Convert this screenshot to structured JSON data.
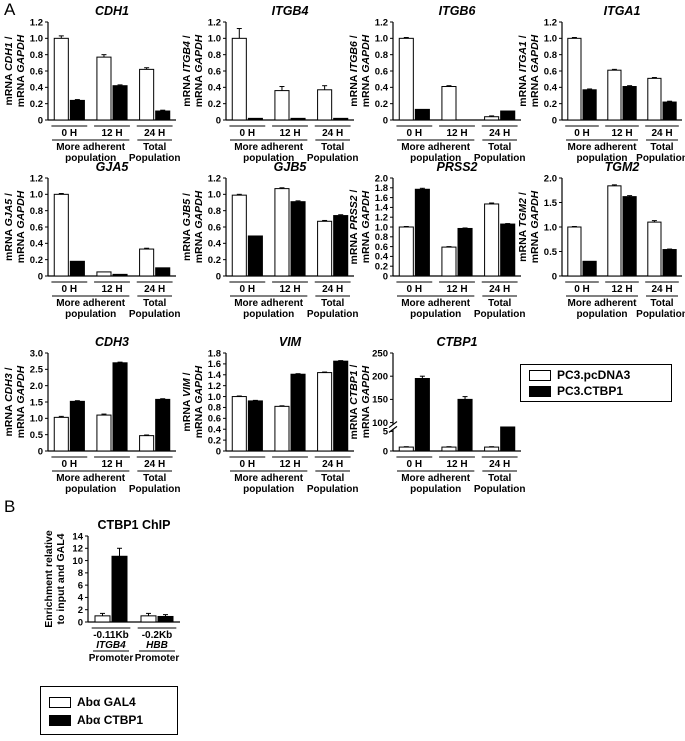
{
  "figure": {
    "panel_a_letter": "A",
    "panel_b_letter": "B",
    "legend_a": [
      {
        "label": "PC3.pcDNA3",
        "fill": "open"
      },
      {
        "label": "PC3.CTBP1",
        "fill": "filled"
      }
    ],
    "legend_b": [
      {
        "label": "Abα GAL4",
        "fill": "open"
      },
      {
        "label": "Abα CTBP1",
        "fill": "filled"
      }
    ]
  },
  "chart_data": [
    {
      "type": "bar",
      "gene": "CDH1",
      "title": "CDH1",
      "ylabel_top": "mRNA CDH1 /",
      "ylabel_bottom": "mRNA GAPDH",
      "categories": [
        "0 H",
        "12 H",
        "24 H"
      ],
      "group_labels": [
        {
          "text": [
            "More adherent",
            "population"
          ],
          "span": [
            0,
            1
          ]
        },
        {
          "text": [
            "Total",
            "Population"
          ],
          "span": [
            2,
            2
          ]
        }
      ],
      "series": [
        {
          "name": "PC3.pcDNA3",
          "values": [
            1.0,
            0.77,
            0.62
          ],
          "errors": [
            0.03,
            0.03,
            0.02
          ]
        },
        {
          "name": "PC3.CTBP1",
          "values": [
            0.24,
            0.42,
            0.11
          ],
          "errors": [
            0.01,
            0.01,
            0.01
          ]
        }
      ],
      "ylim": [
        0,
        1.2
      ],
      "yticks": [
        "0",
        "0.2",
        "0.4",
        "0.6",
        "0.8",
        "1.0",
        "1.2"
      ],
      "ytick_values": [
        0,
        0.2,
        0.4,
        0.6,
        0.8,
        1.0,
        1.2
      ]
    },
    {
      "type": "bar",
      "gene": "ITGB4",
      "title": "ITGB4",
      "ylabel_top": "mRNA ITGB4 /",
      "ylabel_bottom": "mRNA GAPDH",
      "categories": [
        "0 H",
        "12 H",
        "24 H"
      ],
      "group_labels": [
        {
          "text": [
            "More adherent",
            "population"
          ],
          "span": [
            0,
            1
          ]
        },
        {
          "text": [
            "Total",
            "Population"
          ],
          "span": [
            2,
            2
          ]
        }
      ],
      "series": [
        {
          "name": "PC3.pcDNA3",
          "values": [
            1.0,
            0.36,
            0.37
          ],
          "errors": [
            0.12,
            0.05,
            0.05
          ]
        },
        {
          "name": "PC3.CTBP1",
          "values": [
            0.02,
            0.02,
            0.02
          ],
          "errors": [
            0,
            0,
            0
          ]
        }
      ],
      "ylim": [
        0,
        1.2
      ],
      "yticks": [
        "0",
        "0.2",
        "0.4",
        "0.6",
        "0.8",
        "1.0",
        "1.2"
      ],
      "ytick_values": [
        0,
        0.2,
        0.4,
        0.6,
        0.8,
        1.0,
        1.2
      ]
    },
    {
      "type": "bar",
      "gene": "ITGB6",
      "title": "ITGB6",
      "ylabel_top": "mRNA ITGB6 /",
      "ylabel_bottom": "mRNA GAPDH",
      "categories": [
        "0 H",
        "12 H",
        "24 H"
      ],
      "group_labels": [
        {
          "text": [
            "More adherent",
            "population"
          ],
          "span": [
            0,
            1
          ]
        },
        {
          "text": [
            "Total",
            "Population"
          ],
          "span": [
            2,
            2
          ]
        }
      ],
      "series": [
        {
          "name": "PC3.pcDNA3",
          "values": [
            1.0,
            0.41,
            0.04
          ],
          "errors": [
            0.01,
            0.01,
            0.01
          ]
        },
        {
          "name": "PC3.CTBP1",
          "values": [
            0.13,
            0.0,
            0.11
          ],
          "errors": [
            0,
            0,
            0
          ]
        }
      ],
      "ylim": [
        0,
        1.2
      ],
      "yticks": [
        "0",
        "0.2",
        "0.4",
        "0.6",
        "0.8",
        "1.0",
        "1.2"
      ],
      "ytick_values": [
        0,
        0.2,
        0.4,
        0.6,
        0.8,
        1.0,
        1.2
      ]
    },
    {
      "type": "bar",
      "gene": "ITGA1",
      "title": "ITGA1",
      "ylabel_top": "mRNA ITGA1 /",
      "ylabel_bottom": "mRNA GAPDH",
      "categories": [
        "0 H",
        "12 H",
        "24 H"
      ],
      "group_labels": [
        {
          "text": [
            "More adherent",
            "population"
          ],
          "span": [
            0,
            1
          ]
        },
        {
          "text": [
            "Total",
            "Population"
          ],
          "span": [
            2,
            2
          ]
        }
      ],
      "series": [
        {
          "name": "PC3.pcDNA3",
          "values": [
            1.0,
            0.61,
            0.51
          ],
          "errors": [
            0.01,
            0.01,
            0.01
          ]
        },
        {
          "name": "PC3.CTBP1",
          "values": [
            0.37,
            0.41,
            0.22
          ],
          "errors": [
            0.01,
            0.01,
            0.01
          ]
        }
      ],
      "ylim": [
        0,
        1.2
      ],
      "yticks": [
        "0",
        "0.2",
        "0.4",
        "0.6",
        "0.8",
        "1.0",
        "1.2"
      ],
      "ytick_values": [
        0,
        0.2,
        0.4,
        0.6,
        0.8,
        1.0,
        1.2
      ]
    },
    {
      "type": "bar",
      "gene": "GJA5",
      "title": "GJA5",
      "ylabel_top": "mRNA GJA5 /",
      "ylabel_bottom": "mRNA GAPDH",
      "categories": [
        "0 H",
        "12 H",
        "24 H"
      ],
      "group_labels": [
        {
          "text": [
            "More adherent",
            "population"
          ],
          "span": [
            0,
            1
          ]
        },
        {
          "text": [
            "Total",
            "Population"
          ],
          "span": [
            2,
            2
          ]
        }
      ],
      "series": [
        {
          "name": "PC3.pcDNA3",
          "values": [
            1.0,
            0.05,
            0.33
          ],
          "errors": [
            0.01,
            0,
            0.01
          ]
        },
        {
          "name": "PC3.CTBP1",
          "values": [
            0.18,
            0.02,
            0.1
          ],
          "errors": [
            0,
            0,
            0
          ]
        }
      ],
      "ylim": [
        0,
        1.2
      ],
      "yticks": [
        "0",
        "0.2",
        "0.4",
        "0.6",
        "0.8",
        "1.0",
        "1.2"
      ],
      "ytick_values": [
        0,
        0.2,
        0.4,
        0.6,
        0.8,
        1.0,
        1.2
      ]
    },
    {
      "type": "bar",
      "gene": "GJB5",
      "title": "GJB5",
      "ylabel_top": "mRNA GJB5 /",
      "ylabel_bottom": "mRNA GAPDH",
      "categories": [
        "0 H",
        "12 H",
        "24 H"
      ],
      "group_labels": [
        {
          "text": [
            "More adherent",
            "population"
          ],
          "span": [
            0,
            1
          ]
        },
        {
          "text": [
            "Total",
            "Population"
          ],
          "span": [
            2,
            2
          ]
        }
      ],
      "series": [
        {
          "name": "PC3.pcDNA3",
          "values": [
            0.99,
            1.07,
            0.67
          ],
          "errors": [
            0.01,
            0.01,
            0.01
          ]
        },
        {
          "name": "PC3.CTBP1",
          "values": [
            0.49,
            0.91,
            0.74
          ],
          "errors": [
            0,
            0.01,
            0.01
          ]
        }
      ],
      "ylim": [
        0,
        1.2
      ],
      "yticks": [
        "0",
        "0.2",
        "0.4",
        "0.6",
        "0.8",
        "1.0",
        "1.2"
      ],
      "ytick_values": [
        0,
        0.2,
        0.4,
        0.6,
        0.8,
        1.0,
        1.2
      ]
    },
    {
      "type": "bar",
      "gene": "PRSS2",
      "title": "PRSS2",
      "ylabel_top": "mRNA PRSS2 /",
      "ylabel_bottom": "mRNA GAPDH",
      "categories": [
        "0 H",
        "12 H",
        "24 H"
      ],
      "group_labels": [
        {
          "text": [
            "More adherent",
            "population"
          ],
          "span": [
            0,
            1
          ]
        },
        {
          "text": [
            "Total",
            "Population"
          ],
          "span": [
            2,
            2
          ]
        }
      ],
      "series": [
        {
          "name": "PC3.pcDNA3",
          "values": [
            1.0,
            0.59,
            1.47
          ],
          "errors": [
            0.01,
            0.01,
            0.02
          ]
        },
        {
          "name": "PC3.CTBP1",
          "values": [
            1.77,
            0.97,
            1.06
          ],
          "errors": [
            0.02,
            0.01,
            0.01
          ]
        }
      ],
      "ylim": [
        0,
        2.0
      ],
      "yticks": [
        "0",
        "0.2",
        "0.4",
        "0.6",
        "0.8",
        "1.0",
        "1.2",
        "1.4",
        "1.6",
        "1.8",
        "2.0"
      ],
      "ytick_values": [
        0,
        0.2,
        0.4,
        0.6,
        0.8,
        1.0,
        1.2,
        1.4,
        1.6,
        1.8,
        2.0
      ]
    },
    {
      "type": "bar",
      "gene": "TGM2",
      "title": "TGM2",
      "ylabel_top": "mRNA TGM2 /",
      "ylabel_bottom": "mRNA GAPDH",
      "categories": [
        "0 H",
        "12 H",
        "24 H"
      ],
      "group_labels": [
        {
          "text": [
            "More adherent",
            "population"
          ],
          "span": [
            0,
            1
          ]
        },
        {
          "text": [
            "Total",
            "Population"
          ],
          "span": [
            2,
            2
          ]
        }
      ],
      "series": [
        {
          "name": "PC3.pcDNA3",
          "values": [
            1.0,
            1.84,
            1.1
          ],
          "errors": [
            0.01,
            0.02,
            0.03
          ]
        },
        {
          "name": "PC3.CTBP1",
          "values": [
            0.3,
            1.62,
            0.54
          ],
          "errors": [
            0,
            0.02,
            0.01
          ]
        }
      ],
      "ylim": [
        0,
        2.0
      ],
      "yticks": [
        "0",
        "0.5",
        "1.0",
        "1.5",
        "2.0"
      ],
      "ytick_values": [
        0,
        0.5,
        1.0,
        1.5,
        2.0
      ]
    },
    {
      "type": "bar",
      "gene": "CDH3",
      "title": "CDH3",
      "ylabel_top": "mRNA CDH3 /",
      "ylabel_bottom": "mRNA GAPDH",
      "categories": [
        "0 H",
        "12 H",
        "24 H"
      ],
      "group_labels": [
        {
          "text": [
            "More adherent",
            "population"
          ],
          "span": [
            0,
            1
          ]
        },
        {
          "text": [
            "Total",
            "Population"
          ],
          "span": [
            2,
            2
          ]
        }
      ],
      "series": [
        {
          "name": "PC3.pcDNA3",
          "values": [
            1.03,
            1.1,
            0.47
          ],
          "errors": [
            0.03,
            0.03,
            0.02
          ]
        },
        {
          "name": "PC3.CTBP1",
          "values": [
            1.52,
            2.7,
            1.58
          ],
          "errors": [
            0.02,
            0.02,
            0.02
          ]
        }
      ],
      "ylim": [
        0,
        3.0
      ],
      "yticks": [
        "0",
        "0.5",
        "1.0",
        "1.5",
        "2.0",
        "2.5",
        "3.0"
      ],
      "ytick_values": [
        0,
        0.5,
        1.0,
        1.5,
        2.0,
        2.5,
        3.0
      ]
    },
    {
      "type": "bar",
      "gene": "VIM",
      "title": "VIM",
      "ylabel_top": "mRNA VIM /",
      "ylabel_bottom": "mRNA GAPDH",
      "categories": [
        "0 H",
        "12 H",
        "24 H"
      ],
      "group_labels": [
        {
          "text": [
            "More adherent",
            "population"
          ],
          "span": [
            0,
            1
          ]
        },
        {
          "text": [
            "Total",
            "Population"
          ],
          "span": [
            2,
            2
          ]
        }
      ],
      "series": [
        {
          "name": "PC3.pcDNA3",
          "values": [
            1.0,
            0.82,
            1.44
          ],
          "errors": [
            0.01,
            0.01,
            0.01
          ]
        },
        {
          "name": "PC3.CTBP1",
          "values": [
            0.92,
            1.41,
            1.65
          ],
          "errors": [
            0.01,
            0.01,
            0.01
          ]
        }
      ],
      "ylim": [
        0,
        1.8
      ],
      "yticks": [
        "0",
        "0.2",
        "0.4",
        "0.6",
        "0.8",
        "1.0",
        "1.2",
        "1.4",
        "1.6",
        "1.8"
      ],
      "ytick_values": [
        0,
        0.2,
        0.4,
        0.6,
        0.8,
        1.0,
        1.2,
        1.4,
        1.6,
        1.8
      ]
    },
    {
      "type": "bar",
      "gene": "CTBP1",
      "title": "CTBP1",
      "ylabel_top": "mRNA CTBP1 /",
      "ylabel_bottom": "mRNA GAPDH",
      "categories": [
        "0 H",
        "12 H",
        "24 H"
      ],
      "group_labels": [
        {
          "text": [
            "More adherent",
            "population"
          ],
          "span": [
            0,
            1
          ]
        },
        {
          "text": [
            "Total",
            "Population"
          ],
          "span": [
            2,
            2
          ]
        }
      ],
      "series": [
        {
          "name": "PC3.pcDNA3",
          "values": [
            1,
            1,
            1
          ],
          "errors": [
            0.1,
            0.1,
            0.1
          ]
        },
        {
          "name": "PC3.CTBP1",
          "values": [
            195,
            150,
            30
          ],
          "errors": [
            5,
            6,
            2
          ]
        }
      ],
      "broken_axis": true,
      "lower_range": [
        0,
        5
      ],
      "upper_range": [
        100,
        250
      ],
      "yticks": [
        "0",
        "5",
        "100",
        "150",
        "200",
        "250"
      ],
      "ytick_values": [
        0,
        5,
        100,
        150,
        200,
        250
      ]
    },
    {
      "type": "bar",
      "gene": "ChIP",
      "title": "CTBP1 ChIP",
      "ylabel_top": "Enrichment relative",
      "ylabel_bottom": "to input and GAL4",
      "categories": [
        "-0.11Kb",
        "-0.2Kb"
      ],
      "promoters": [
        {
          "gene": "ITGB4",
          "label": "Promoter"
        },
        {
          "gene": "HBB",
          "label": "Promoter"
        }
      ],
      "series": [
        {
          "name": "Abα GAL4",
          "values": [
            1.0,
            1.0
          ],
          "errors": [
            0.4,
            0.4
          ]
        },
        {
          "name": "Abα CTBP1",
          "values": [
            10.7,
            0.9
          ],
          "errors": [
            1.3,
            0.3
          ]
        }
      ],
      "ylim": [
        0,
        14
      ],
      "yticks": [
        "0",
        "2",
        "4",
        "6",
        "8",
        "10",
        "12",
        "14"
      ],
      "ytick_values": [
        0,
        2,
        4,
        6,
        8,
        10,
        12,
        14
      ]
    }
  ]
}
